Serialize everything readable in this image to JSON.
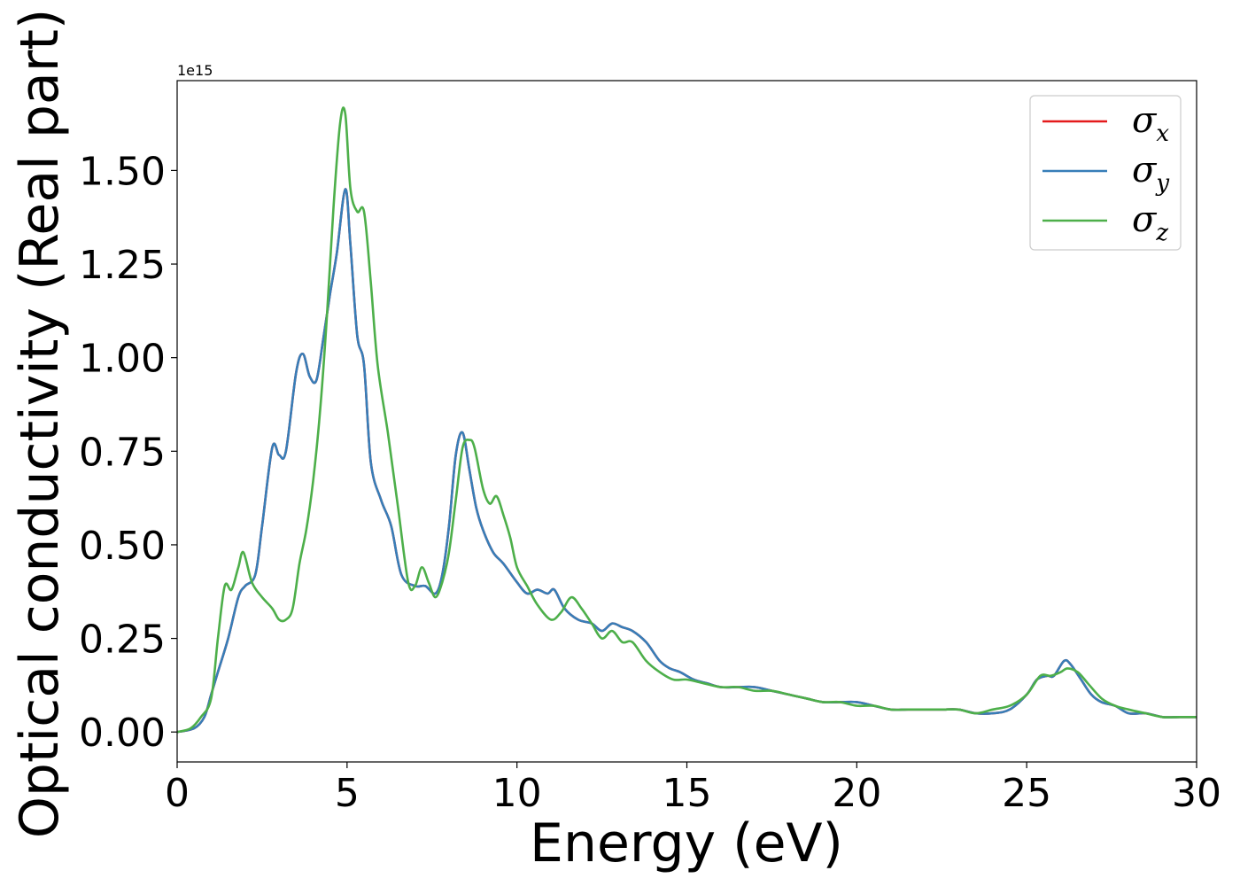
{
  "chart_data": {
    "type": "line",
    "title": "",
    "xlabel": "Energy (eV)",
    "ylabel": "Optical conductivity (Real part)",
    "y_offset_label": "1e15",
    "xlim": [
      0,
      30
    ],
    "ylim": [
      -0.08,
      1.74
    ],
    "x_ticks": [
      0,
      5,
      10,
      15,
      20,
      25,
      30
    ],
    "x_tick_labels": [
      "0",
      "5",
      "10",
      "15",
      "20",
      "25",
      "30"
    ],
    "y_ticks": [
      0.0,
      0.25,
      0.5,
      0.75,
      1.0,
      1.25,
      1.5
    ],
    "y_tick_labels": [
      "0.00",
      "0.25",
      "0.50",
      "0.75",
      "1.00",
      "1.25",
      "1.50"
    ],
    "grid": false,
    "legend_position": "top-right",
    "series": [
      {
        "name": "σx",
        "legend_symbol": "σ",
        "legend_subscript": "x",
        "color": "#e41a1c",
        "x": [
          0,
          0.5,
          0.8,
          1.0,
          1.2,
          1.5,
          1.8,
          2.0,
          2.3,
          2.5,
          2.8,
          3.0,
          3.2,
          3.5,
          3.7,
          3.9,
          4.1,
          4.3,
          4.5,
          4.7,
          4.95,
          5.1,
          5.3,
          5.5,
          5.7,
          6.0,
          6.3,
          6.6,
          7.0,
          7.3,
          7.6,
          7.8,
          8.0,
          8.2,
          8.4,
          8.6,
          8.8,
          9.0,
          9.3,
          9.6,
          10.0,
          10.3,
          10.6,
          10.9,
          11.1,
          11.4,
          11.8,
          12.2,
          12.5,
          12.8,
          13.1,
          13.4,
          13.8,
          14.2,
          14.5,
          14.8,
          15.2,
          15.6,
          16.0,
          16.5,
          17.0,
          17.5,
          18.0,
          18.5,
          19.0,
          19.5,
          20.0,
          20.5,
          21.0,
          21.5,
          22.0,
          22.5,
          23.0,
          23.5,
          24.0,
          24.5,
          25.0,
          25.3,
          25.6,
          25.8,
          26.1,
          26.3,
          26.6,
          26.9,
          27.2,
          27.6,
          28.0,
          28.5,
          29.0,
          29.5,
          30.0
        ],
        "values": [
          0.0,
          0.01,
          0.04,
          0.1,
          0.16,
          0.25,
          0.36,
          0.39,
          0.42,
          0.55,
          0.76,
          0.74,
          0.75,
          0.96,
          1.01,
          0.95,
          0.94,
          1.05,
          1.17,
          1.28,
          1.45,
          1.3,
          1.06,
          0.98,
          0.72,
          0.62,
          0.55,
          0.42,
          0.39,
          0.39,
          0.37,
          0.42,
          0.55,
          0.74,
          0.8,
          0.7,
          0.6,
          0.54,
          0.48,
          0.45,
          0.4,
          0.37,
          0.38,
          0.37,
          0.38,
          0.33,
          0.3,
          0.29,
          0.27,
          0.29,
          0.28,
          0.27,
          0.24,
          0.19,
          0.17,
          0.16,
          0.14,
          0.13,
          0.12,
          0.12,
          0.12,
          0.11,
          0.1,
          0.09,
          0.08,
          0.08,
          0.08,
          0.07,
          0.06,
          0.06,
          0.06,
          0.06,
          0.06,
          0.05,
          0.05,
          0.06,
          0.1,
          0.14,
          0.15,
          0.15,
          0.19,
          0.18,
          0.14,
          0.1,
          0.08,
          0.07,
          0.05,
          0.05,
          0.04,
          0.04,
          0.04
        ]
      },
      {
        "name": "σy",
        "legend_symbol": "σ",
        "legend_subscript": "y",
        "color": "#377eb8",
        "x": [
          0,
          0.5,
          0.8,
          1.0,
          1.2,
          1.5,
          1.8,
          2.0,
          2.3,
          2.5,
          2.8,
          3.0,
          3.2,
          3.5,
          3.7,
          3.9,
          4.1,
          4.3,
          4.5,
          4.7,
          4.95,
          5.1,
          5.3,
          5.5,
          5.7,
          6.0,
          6.3,
          6.6,
          7.0,
          7.3,
          7.6,
          7.8,
          8.0,
          8.2,
          8.4,
          8.6,
          8.8,
          9.0,
          9.3,
          9.6,
          10.0,
          10.3,
          10.6,
          10.9,
          11.1,
          11.4,
          11.8,
          12.2,
          12.5,
          12.8,
          13.1,
          13.4,
          13.8,
          14.2,
          14.5,
          14.8,
          15.2,
          15.6,
          16.0,
          16.5,
          17.0,
          17.5,
          18.0,
          18.5,
          19.0,
          19.5,
          20.0,
          20.5,
          21.0,
          21.5,
          22.0,
          22.5,
          23.0,
          23.5,
          24.0,
          24.5,
          25.0,
          25.3,
          25.6,
          25.8,
          26.1,
          26.3,
          26.6,
          26.9,
          27.2,
          27.6,
          28.0,
          28.5,
          29.0,
          29.5,
          30.0
        ],
        "values": [
          0.0,
          0.01,
          0.04,
          0.1,
          0.16,
          0.25,
          0.36,
          0.39,
          0.42,
          0.55,
          0.76,
          0.74,
          0.75,
          0.96,
          1.01,
          0.95,
          0.94,
          1.05,
          1.17,
          1.28,
          1.45,
          1.3,
          1.06,
          0.98,
          0.72,
          0.62,
          0.55,
          0.42,
          0.39,
          0.39,
          0.37,
          0.42,
          0.55,
          0.74,
          0.8,
          0.7,
          0.6,
          0.54,
          0.48,
          0.45,
          0.4,
          0.37,
          0.38,
          0.37,
          0.38,
          0.33,
          0.3,
          0.29,
          0.27,
          0.29,
          0.28,
          0.27,
          0.24,
          0.19,
          0.17,
          0.16,
          0.14,
          0.13,
          0.12,
          0.12,
          0.12,
          0.11,
          0.1,
          0.09,
          0.08,
          0.08,
          0.08,
          0.07,
          0.06,
          0.06,
          0.06,
          0.06,
          0.06,
          0.05,
          0.05,
          0.06,
          0.1,
          0.14,
          0.15,
          0.15,
          0.19,
          0.18,
          0.14,
          0.1,
          0.08,
          0.07,
          0.05,
          0.05,
          0.04,
          0.04,
          0.04
        ]
      },
      {
        "name": "σz",
        "legend_symbol": "σ",
        "legend_subscript": "z",
        "color": "#4daf4a",
        "x": [
          0,
          0.4,
          0.7,
          1.0,
          1.2,
          1.4,
          1.6,
          1.8,
          1.95,
          2.2,
          2.5,
          2.8,
          3.0,
          3.2,
          3.4,
          3.6,
          3.8,
          4.0,
          4.2,
          4.4,
          4.6,
          4.8,
          4.95,
          5.1,
          5.3,
          5.5,
          5.7,
          5.9,
          6.2,
          6.5,
          6.8,
          7.0,
          7.2,
          7.4,
          7.6,
          7.8,
          8.0,
          8.2,
          8.4,
          8.6,
          8.75,
          9.0,
          9.2,
          9.4,
          9.6,
          9.8,
          10.0,
          10.3,
          10.6,
          11.0,
          11.3,
          11.6,
          11.9,
          12.2,
          12.5,
          12.8,
          13.1,
          13.4,
          13.8,
          14.2,
          14.6,
          15.0,
          15.5,
          16.0,
          16.5,
          17.0,
          17.5,
          18.0,
          18.5,
          19.0,
          19.5,
          20.0,
          20.5,
          21.0,
          21.5,
          22.0,
          22.5,
          23.0,
          23.5,
          24.0,
          24.5,
          25.0,
          25.4,
          25.7,
          26.0,
          26.2,
          26.5,
          26.8,
          27.2,
          27.6,
          28.0,
          28.5,
          29.0,
          29.5,
          30.0
        ],
        "values": [
          0.0,
          0.01,
          0.04,
          0.09,
          0.25,
          0.39,
          0.38,
          0.44,
          0.48,
          0.4,
          0.36,
          0.33,
          0.3,
          0.3,
          0.33,
          0.45,
          0.54,
          0.67,
          0.85,
          1.1,
          1.4,
          1.63,
          1.65,
          1.45,
          1.39,
          1.39,
          1.2,
          0.98,
          0.8,
          0.6,
          0.4,
          0.39,
          0.44,
          0.4,
          0.36,
          0.4,
          0.48,
          0.62,
          0.76,
          0.78,
          0.76,
          0.65,
          0.61,
          0.63,
          0.58,
          0.52,
          0.44,
          0.39,
          0.34,
          0.3,
          0.32,
          0.36,
          0.33,
          0.29,
          0.25,
          0.27,
          0.24,
          0.24,
          0.19,
          0.16,
          0.14,
          0.14,
          0.13,
          0.12,
          0.12,
          0.11,
          0.11,
          0.1,
          0.09,
          0.08,
          0.08,
          0.07,
          0.07,
          0.06,
          0.06,
          0.06,
          0.06,
          0.06,
          0.05,
          0.06,
          0.07,
          0.1,
          0.15,
          0.15,
          0.16,
          0.17,
          0.16,
          0.13,
          0.09,
          0.07,
          0.06,
          0.05,
          0.04,
          0.04,
          0.04
        ]
      }
    ]
  }
}
